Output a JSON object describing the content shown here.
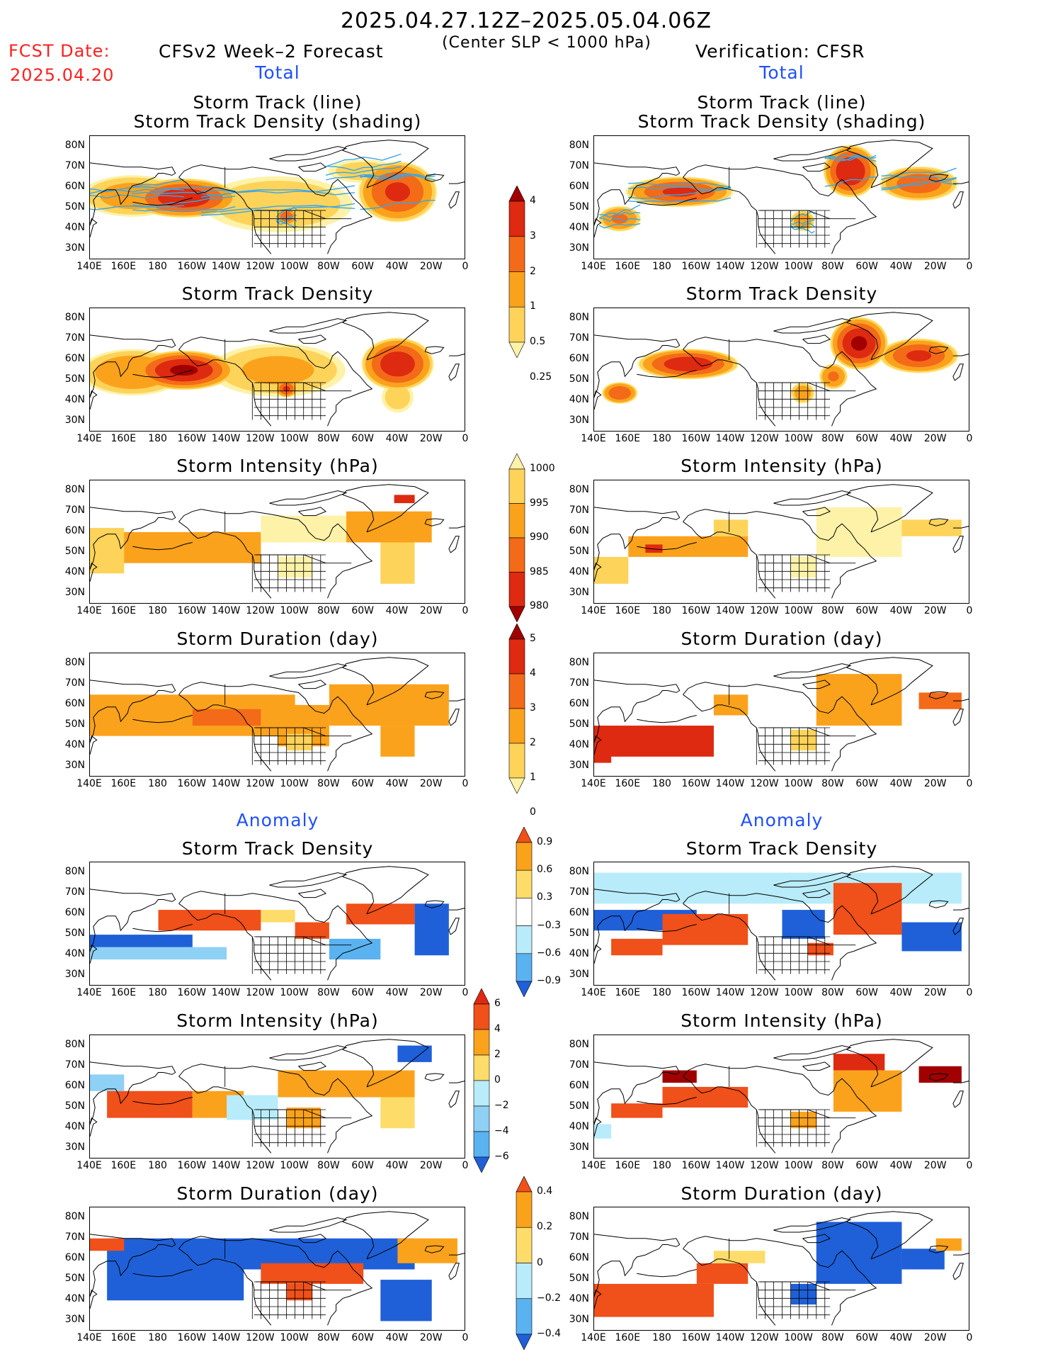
{
  "header": {
    "period": "2025.04.27.12Z–2025.05.04.06Z",
    "criterion": "(Center SLP < 1000 hPa)",
    "fcst_date_label": "FCST Date:",
    "fcst_date": "2025.04.20",
    "forecast_label": "CFSv2 Week–2 Forecast",
    "verification_label": "Verification: CFSR",
    "total_label": "Total",
    "anomaly_label": "Anomaly"
  },
  "axes": {
    "lat_labels": [
      "80N",
      "70N",
      "60N",
      "50N",
      "40N",
      "30N"
    ],
    "lon_labels": [
      "140E",
      "160E",
      "180",
      "160W",
      "140W",
      "120W",
      "100W",
      "80W",
      "60W",
      "40W",
      "20W",
      "0"
    ]
  },
  "panel_titles": {
    "track_line": "Storm Track (line)",
    "track_shading": "Storm Track Density (shading)",
    "density": "Storm Track Density",
    "intensity": "Storm Intensity (hPa)",
    "duration": "Storm Duration (day)"
  },
  "colorbars": {
    "density": {
      "labels": [
        "4",
        "3",
        "2",
        "1",
        "0.5",
        "0.25"
      ],
      "colors": [
        "#a00000",
        "#dd2a10",
        "#f36a18",
        "#fba21c",
        "#fdd35a",
        "#fdf2a8"
      ]
    },
    "intensity": {
      "labels": [
        "1000",
        "995",
        "990",
        "985",
        "980"
      ],
      "colors": [
        "#fdf2a8",
        "#fdd35a",
        "#fba21c",
        "#f36a18",
        "#dd2a10",
        "#a00000"
      ]
    },
    "duration": {
      "labels": [
        "5",
        "4",
        "3",
        "2",
        "1",
        "0"
      ],
      "colors": [
        "#a00000",
        "#dd2a10",
        "#f36a18",
        "#fba21c",
        "#fdd35a",
        "#fdf2a8"
      ]
    },
    "anom_density": {
      "labels": [
        "0.9",
        "0.6",
        "0.3",
        "−0.3",
        "−0.6",
        "−0.9"
      ],
      "colors": [
        "#f0501a",
        "#fba21c",
        "#fddc6a",
        "#ffffff",
        "#b8ecfa",
        "#5ab2f0",
        "#1f60d8"
      ]
    },
    "anom_intensity": {
      "labels": [
        "6",
        "4",
        "2",
        "0",
        "−2",
        "−4",
        "−6"
      ],
      "colors": [
        "#dd2a10",
        "#f0501a",
        "#fba21c",
        "#fddc6a",
        "#b8ecfa",
        "#8fd0f5",
        "#5ab2f0",
        "#1f60d8"
      ]
    },
    "anom_duration": {
      "labels": [
        "0.4",
        "0.2",
        "0",
        "−0.2",
        "−0.4"
      ],
      "colors": [
        "#f0501a",
        "#fba21c",
        "#fddc6a",
        "#b8ecfa",
        "#5ab2f0",
        "#1f60d8"
      ]
    }
  },
  "map_data": {
    "extent": {
      "lon_min": 140,
      "lon_max": 360,
      "lat_min": 25,
      "lat_max": 85
    },
    "panels": [
      {
        "id": "fcst-track",
        "type": "total",
        "lines": true,
        "blobs": [
          {
            "lon": 195,
            "lat": 55,
            "rx": 30,
            "ry": 9,
            "v": 3.5
          },
          {
            "lon": 165,
            "lat": 56,
            "rx": 30,
            "ry": 10,
            "v": 1.2
          },
          {
            "lon": 320,
            "lat": 58,
            "rx": 22,
            "ry": 14,
            "v": 3
          },
          {
            "lon": 250,
            "lat": 52,
            "rx": 45,
            "ry": 14,
            "v": 0.8
          },
          {
            "lon": 255,
            "lat": 46,
            "rx": 6,
            "ry": 4,
            "v": 2.6
          },
          {
            "lon": 300,
            "lat": 68,
            "rx": 22,
            "ry": 6,
            "v": 0.6
          }
        ]
      },
      {
        "id": "cfsr-track",
        "type": "total",
        "lines": true,
        "blobs": [
          {
            "lon": 190,
            "lat": 58,
            "rx": 30,
            "ry": 7,
            "v": 3
          },
          {
            "lon": 155,
            "lat": 45,
            "rx": 12,
            "ry": 6,
            "v": 2
          },
          {
            "lon": 290,
            "lat": 68,
            "rx": 15,
            "ry": 12,
            "v": 3.8
          },
          {
            "lon": 330,
            "lat": 62,
            "rx": 22,
            "ry": 8,
            "v": 2.5
          },
          {
            "lon": 262,
            "lat": 44,
            "rx": 7,
            "ry": 5,
            "v": 1.5
          }
        ]
      },
      {
        "id": "fcst-density",
        "type": "total",
        "lines": false,
        "blobs": [
          {
            "lon": 195,
            "lat": 55,
            "rx": 28,
            "ry": 9,
            "v": 4
          },
          {
            "lon": 165,
            "lat": 54,
            "rx": 30,
            "ry": 11,
            "v": 1.5
          },
          {
            "lon": 320,
            "lat": 58,
            "rx": 20,
            "ry": 12,
            "v": 3.5
          },
          {
            "lon": 250,
            "lat": 55,
            "rx": 40,
            "ry": 13,
            "v": 1
          },
          {
            "lon": 255,
            "lat": 46,
            "rx": 6,
            "ry": 4,
            "v": 3
          },
          {
            "lon": 320,
            "lat": 42,
            "rx": 10,
            "ry": 8,
            "v": 0.6
          }
        ]
      },
      {
        "id": "cfsr-density",
        "type": "total",
        "lines": false,
        "blobs": [
          {
            "lon": 195,
            "lat": 58,
            "rx": 28,
            "ry": 7,
            "v": 3.5
          },
          {
            "lon": 155,
            "lat": 44,
            "rx": 10,
            "ry": 5,
            "v": 2.8
          },
          {
            "lon": 295,
            "lat": 68,
            "rx": 16,
            "ry": 12,
            "v": 4
          },
          {
            "lon": 330,
            "lat": 62,
            "rx": 22,
            "ry": 8,
            "v": 3
          },
          {
            "lon": 262,
            "lat": 44,
            "rx": 7,
            "ry": 5,
            "v": 1.4
          },
          {
            "lon": 280,
            "lat": 52,
            "rx": 8,
            "ry": 6,
            "v": 2
          }
        ]
      },
      {
        "id": "fcst-intensity",
        "type": "grid",
        "cells": [
          {
            "lon0": 150,
            "lon1": 240,
            "lat0": 45,
            "lat1": 60,
            "c": "#fba21c"
          },
          {
            "lon0": 140,
            "lon1": 160,
            "lat0": 40,
            "lat1": 62,
            "c": "#fdd35a"
          },
          {
            "lon0": 240,
            "lon1": 320,
            "lat0": 55,
            "lat1": 68,
            "c": "#fdf2a8"
          },
          {
            "lon0": 290,
            "lon1": 340,
            "lat0": 55,
            "lat1": 70,
            "c": "#fba21c"
          },
          {
            "lon0": 250,
            "lon1": 270,
            "lat0": 38,
            "lat1": 48,
            "c": "#fdf2a8"
          },
          {
            "lon0": 318,
            "lon1": 330,
            "lat0": 74,
            "lat1": 78,
            "c": "#dd2a10"
          },
          {
            "lon0": 310,
            "lon1": 330,
            "lat0": 35,
            "lat1": 55,
            "c": "#fdd35a"
          }
        ]
      },
      {
        "id": "cfsr-intensity",
        "type": "grid",
        "cells": [
          {
            "lon0": 160,
            "lon1": 230,
            "lat0": 48,
            "lat1": 58,
            "c": "#fba21c"
          },
          {
            "lon0": 170,
            "lon1": 180,
            "lat0": 50,
            "lat1": 54,
            "c": "#dd2a10"
          },
          {
            "lon0": 140,
            "lon1": 160,
            "lat0": 35,
            "lat1": 48,
            "c": "#fdd35a"
          },
          {
            "lon0": 270,
            "lon1": 320,
            "lat0": 48,
            "lat1": 72,
            "c": "#fdf2a8"
          },
          {
            "lon0": 320,
            "lon1": 355,
            "lat0": 58,
            "lat1": 66,
            "c": "#fdd35a"
          },
          {
            "lon0": 255,
            "lon1": 270,
            "lat0": 38,
            "lat1": 48,
            "c": "#fdf2a8"
          },
          {
            "lon0": 210,
            "lon1": 230,
            "lat0": 58,
            "lat1": 66,
            "c": "#fdd35a"
          }
        ]
      },
      {
        "id": "fcst-duration",
        "type": "grid",
        "cells": [
          {
            "lon0": 140,
            "lon1": 260,
            "lat0": 45,
            "lat1": 65,
            "c": "#fba21c"
          },
          {
            "lon0": 250,
            "lon1": 280,
            "lat0": 40,
            "lat1": 60,
            "c": "#fba21c"
          },
          {
            "lon0": 280,
            "lon1": 350,
            "lat0": 50,
            "lat1": 70,
            "c": "#fba21c"
          },
          {
            "lon0": 310,
            "lon1": 330,
            "lat0": 35,
            "lat1": 50,
            "c": "#fba21c"
          },
          {
            "lon0": 200,
            "lon1": 240,
            "lat0": 50,
            "lat1": 58,
            "c": "#f36a18"
          },
          {
            "lon0": 255,
            "lon1": 270,
            "lat0": 38,
            "lat1": 46,
            "c": "#fdd35a"
          }
        ]
      },
      {
        "id": "cfsr-duration",
        "type": "grid",
        "cells": [
          {
            "lon0": 140,
            "lon1": 210,
            "lat0": 35,
            "lat1": 50,
            "c": "#dd2a10"
          },
          {
            "lon0": 140,
            "lon1": 150,
            "lat0": 32,
            "lat1": 40,
            "c": "#dd2a10"
          },
          {
            "lon0": 210,
            "lon1": 230,
            "lat0": 55,
            "lat1": 65,
            "c": "#fba21c"
          },
          {
            "lon0": 270,
            "lon1": 320,
            "lat0": 50,
            "lat1": 75,
            "c": "#fba21c"
          },
          {
            "lon0": 330,
            "lon1": 355,
            "lat0": 58,
            "lat1": 66,
            "c": "#f36a18"
          },
          {
            "lon0": 255,
            "lon1": 270,
            "lat0": 38,
            "lat1": 48,
            "c": "#fdd35a"
          }
        ]
      },
      {
        "id": "fcst-anom-density",
        "type": "grid",
        "cells": [
          {
            "lon0": 140,
            "lon1": 200,
            "lat0": 40,
            "lat1": 50,
            "c": "#1f60d8"
          },
          {
            "lon0": 140,
            "lon1": 220,
            "lat0": 38,
            "lat1": 44,
            "c": "#8fd0f5"
          },
          {
            "lon0": 180,
            "lon1": 240,
            "lat0": 52,
            "lat1": 62,
            "c": "#f0501a"
          },
          {
            "lon0": 260,
            "lon1": 280,
            "lat0": 48,
            "lat1": 56,
            "c": "#f0501a"
          },
          {
            "lon0": 290,
            "lon1": 330,
            "lat0": 55,
            "lat1": 65,
            "c": "#f0501a"
          },
          {
            "lon0": 330,
            "lon1": 350,
            "lat0": 40,
            "lat1": 65,
            "c": "#1f60d8"
          },
          {
            "lon0": 240,
            "lon1": 260,
            "lat0": 56,
            "lat1": 62,
            "c": "#fddc6a"
          },
          {
            "lon0": 280,
            "lon1": 310,
            "lat0": 38,
            "lat1": 48,
            "c": "#5ab2f0"
          }
        ]
      },
      {
        "id": "cfsr-anom-density",
        "type": "grid",
        "cells": [
          {
            "lon0": 140,
            "lon1": 355,
            "lat0": 65,
            "lat1": 80,
            "c": "#b8ecfa"
          },
          {
            "lon0": 140,
            "lon1": 200,
            "lat0": 52,
            "lat1": 62,
            "c": "#1f60d8"
          },
          {
            "lon0": 180,
            "lon1": 230,
            "lat0": 45,
            "lat1": 60,
            "c": "#f0501a"
          },
          {
            "lon0": 150,
            "lon1": 180,
            "lat0": 40,
            "lat1": 48,
            "c": "#f0501a"
          },
          {
            "lon0": 280,
            "lon1": 320,
            "lat0": 50,
            "lat1": 75,
            "c": "#f0501a"
          },
          {
            "lon0": 320,
            "lon1": 355,
            "lat0": 42,
            "lat1": 56,
            "c": "#1f60d8"
          },
          {
            "lon0": 250,
            "lon1": 275,
            "lat0": 48,
            "lat1": 62,
            "c": "#1f60d8"
          },
          {
            "lon0": 265,
            "lon1": 280,
            "lat0": 40,
            "lat1": 46,
            "c": "#f0501a"
          }
        ]
      },
      {
        "id": "fcst-anom-intensity",
        "type": "grid",
        "cells": [
          {
            "lon0": 150,
            "lon1": 200,
            "lat0": 45,
            "lat1": 58,
            "c": "#f0501a"
          },
          {
            "lon0": 140,
            "lon1": 160,
            "lat0": 58,
            "lat1": 66,
            "c": "#8fd0f5"
          },
          {
            "lon0": 200,
            "lon1": 230,
            "lat0": 45,
            "lat1": 58,
            "c": "#fba21c"
          },
          {
            "lon0": 220,
            "lon1": 250,
            "lat0": 44,
            "lat1": 56,
            "c": "#b8ecfa"
          },
          {
            "lon0": 250,
            "lon1": 330,
            "lat0": 55,
            "lat1": 68,
            "c": "#fba21c"
          },
          {
            "lon0": 255,
            "lon1": 275,
            "lat0": 40,
            "lat1": 50,
            "c": "#fba21c"
          },
          {
            "lon0": 310,
            "lon1": 330,
            "lat0": 40,
            "lat1": 55,
            "c": "#fddc6a"
          },
          {
            "lon0": 320,
            "lon1": 340,
            "lat0": 72,
            "lat1": 80,
            "c": "#1f60d8"
          }
        ]
      },
      {
        "id": "cfsr-anom-intensity",
        "type": "grid",
        "cells": [
          {
            "lon0": 180,
            "lon1": 230,
            "lat0": 50,
            "lat1": 60,
            "c": "#f0501a"
          },
          {
            "lon0": 180,
            "lon1": 200,
            "lat0": 62,
            "lat1": 68,
            "c": "#a00000"
          },
          {
            "lon0": 150,
            "lon1": 180,
            "lat0": 45,
            "lat1": 52,
            "c": "#f0501a"
          },
          {
            "lon0": 280,
            "lon1": 310,
            "lat0": 68,
            "lat1": 76,
            "c": "#dd2a10"
          },
          {
            "lon0": 280,
            "lon1": 320,
            "lat0": 48,
            "lat1": 68,
            "c": "#fba21c"
          },
          {
            "lon0": 330,
            "lon1": 355,
            "lat0": 62,
            "lat1": 70,
            "c": "#a00000"
          },
          {
            "lon0": 255,
            "lon1": 270,
            "lat0": 40,
            "lat1": 48,
            "c": "#fba21c"
          },
          {
            "lon0": 140,
            "lon1": 150,
            "lat0": 35,
            "lat1": 42,
            "c": "#b8ecfa"
          }
        ]
      },
      {
        "id": "fcst-anom-duration",
        "type": "grid",
        "cells": [
          {
            "lon0": 150,
            "lon1": 330,
            "lat0": 55,
            "lat1": 70,
            "c": "#1f60d8"
          },
          {
            "lon0": 150,
            "lon1": 230,
            "lat0": 40,
            "lat1": 55,
            "c": "#1f60d8"
          },
          {
            "lon0": 240,
            "lon1": 300,
            "lat0": 48,
            "lat1": 58,
            "c": "#f0501a"
          },
          {
            "lon0": 140,
            "lon1": 160,
            "lat0": 64,
            "lat1": 70,
            "c": "#f0501a"
          },
          {
            "lon0": 320,
            "lon1": 355,
            "lat0": 58,
            "lat1": 70,
            "c": "#fba21c"
          },
          {
            "lon0": 310,
            "lon1": 340,
            "lat0": 30,
            "lat1": 50,
            "c": "#1f60d8"
          },
          {
            "lon0": 255,
            "lon1": 270,
            "lat0": 40,
            "lat1": 48,
            "c": "#f0501a"
          }
        ]
      },
      {
        "id": "cfsr-anom-duration",
        "type": "grid",
        "cells": [
          {
            "lon0": 140,
            "lon1": 210,
            "lat0": 32,
            "lat1": 48,
            "c": "#f0501a"
          },
          {
            "lon0": 200,
            "lon1": 230,
            "lat0": 48,
            "lat1": 58,
            "c": "#f0501a"
          },
          {
            "lon0": 270,
            "lon1": 320,
            "lat0": 48,
            "lat1": 78,
            "c": "#1f60d8"
          },
          {
            "lon0": 320,
            "lon1": 345,
            "lat0": 55,
            "lat1": 65,
            "c": "#1f60d8"
          },
          {
            "lon0": 340,
            "lon1": 355,
            "lat0": 64,
            "lat1": 70,
            "c": "#fba21c"
          },
          {
            "lon0": 255,
            "lon1": 270,
            "lat0": 38,
            "lat1": 48,
            "c": "#1f60d8"
          },
          {
            "lon0": 210,
            "lon1": 240,
            "lat0": 58,
            "lat1": 64,
            "c": "#fddc6a"
          }
        ]
      }
    ]
  }
}
